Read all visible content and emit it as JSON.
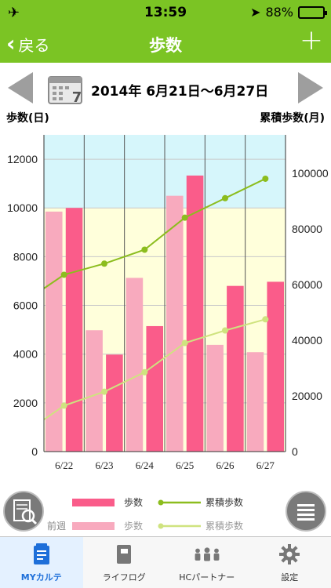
{
  "status_bar": {
    "time": "13:59",
    "battery": "88%",
    "battery_level": 0.88,
    "airplane_icon": "airplane-icon",
    "location_icon": "location-arrow-icon"
  },
  "nav": {
    "back_label": "戻る",
    "title": "歩数",
    "add_label": "+"
  },
  "week": {
    "range": "2014年 6月21日〜6月27日",
    "calendar_day": "7"
  },
  "axis_captions": {
    "left": "歩数(日)",
    "right": "累積歩数(月)"
  },
  "colors": {
    "header_green": "#7bc424",
    "this_week_bar": "#fa5c8a",
    "last_week_bar": "#f8aabe",
    "this_week_line": "#8cbd1e",
    "last_week_line": "#cfe37f",
    "band_top": "#d6f6fb",
    "band_bottom": "#ffffdb"
  },
  "chart_data": {
    "type": "bar",
    "categories": [
      "6/22",
      "6/23",
      "6/24",
      "6/25",
      "6/26",
      "6/27"
    ],
    "left_ylim": [
      0,
      13000
    ],
    "left_ticks": [
      0,
      2000,
      4000,
      6000,
      8000,
      10000,
      12000
    ],
    "right_ylim": [
      0,
      113750
    ],
    "right_ticks": [
      0,
      20000,
      40000,
      60000,
      80000,
      100000
    ],
    "band_threshold": 10000,
    "grid": true,
    "series": [
      {
        "name": "前週 歩数",
        "type": "bar",
        "axis": "left",
        "values": [
          9850,
          4980,
          7130,
          10500,
          4380,
          4080
        ]
      },
      {
        "name": "歩数",
        "type": "bar",
        "axis": "left",
        "values": [
          10000,
          3980,
          5150,
          11330,
          6800,
          6970
        ]
      },
      {
        "name": "累積歩数",
        "type": "line",
        "axis": "right",
        "values": [
          63500,
          67500,
          72500,
          84000,
          91000,
          98000
        ],
        "start": 58600
      },
      {
        "name": "前週 累積歩数",
        "type": "line",
        "axis": "right",
        "values": [
          16500,
          21500,
          28500,
          39000,
          43500,
          47500
        ],
        "start": 11500
      }
    ]
  },
  "legend": {
    "prev_week_label": "前週",
    "steps_label": "歩数",
    "cumulative_label": "累積歩数"
  },
  "tabs": [
    {
      "label": "MYカルテ",
      "icon": "notepad-icon",
      "active": true
    },
    {
      "label": "ライフログ",
      "icon": "book-icon",
      "active": false
    },
    {
      "label": "HCパートナー",
      "icon": "people-icon",
      "active": false
    },
    {
      "label": "設定",
      "icon": "gear-icon",
      "active": false
    }
  ]
}
